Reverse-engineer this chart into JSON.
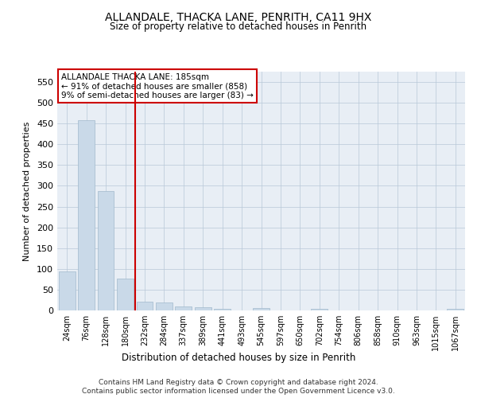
{
  "title_line1": "ALLANDALE, THACKA LANE, PENRITH, CA11 9HX",
  "title_line2": "Size of property relative to detached houses in Penrith",
  "xlabel": "Distribution of detached houses by size in Penrith",
  "ylabel": "Number of detached properties",
  "footer_line1": "Contains HM Land Registry data © Crown copyright and database right 2024.",
  "footer_line2": "Contains public sector information licensed under the Open Government Licence v3.0.",
  "bar_labels": [
    "24sqm",
    "76sqm",
    "128sqm",
    "180sqm",
    "232sqm",
    "284sqm",
    "337sqm",
    "389sqm",
    "441sqm",
    "493sqm",
    "545sqm",
    "597sqm",
    "650sqm",
    "702sqm",
    "754sqm",
    "806sqm",
    "858sqm",
    "910sqm",
    "963sqm",
    "1015sqm",
    "1067sqm"
  ],
  "bar_values": [
    93,
    458,
    287,
    77,
    22,
    20,
    9,
    7,
    4,
    0,
    5,
    0,
    0,
    4,
    0,
    0,
    0,
    0,
    0,
    0,
    4
  ],
  "bar_color": "#c9d9e8",
  "bar_edge_color": "#a0b8cc",
  "vline_x": 3.5,
  "vline_color": "#cc0000",
  "ylim": [
    0,
    575
  ],
  "yticks": [
    0,
    50,
    100,
    150,
    200,
    250,
    300,
    350,
    400,
    450,
    500,
    550
  ],
  "annotation_title": "ALLANDALE THACKA LANE: 185sqm",
  "annotation_line1": "← 91% of detached houses are smaller (858)",
  "annotation_line2": "9% of semi-detached houses are larger (83) →",
  "annotation_box_color": "#cc0000",
  "plot_bg_color": "#e8eef5"
}
